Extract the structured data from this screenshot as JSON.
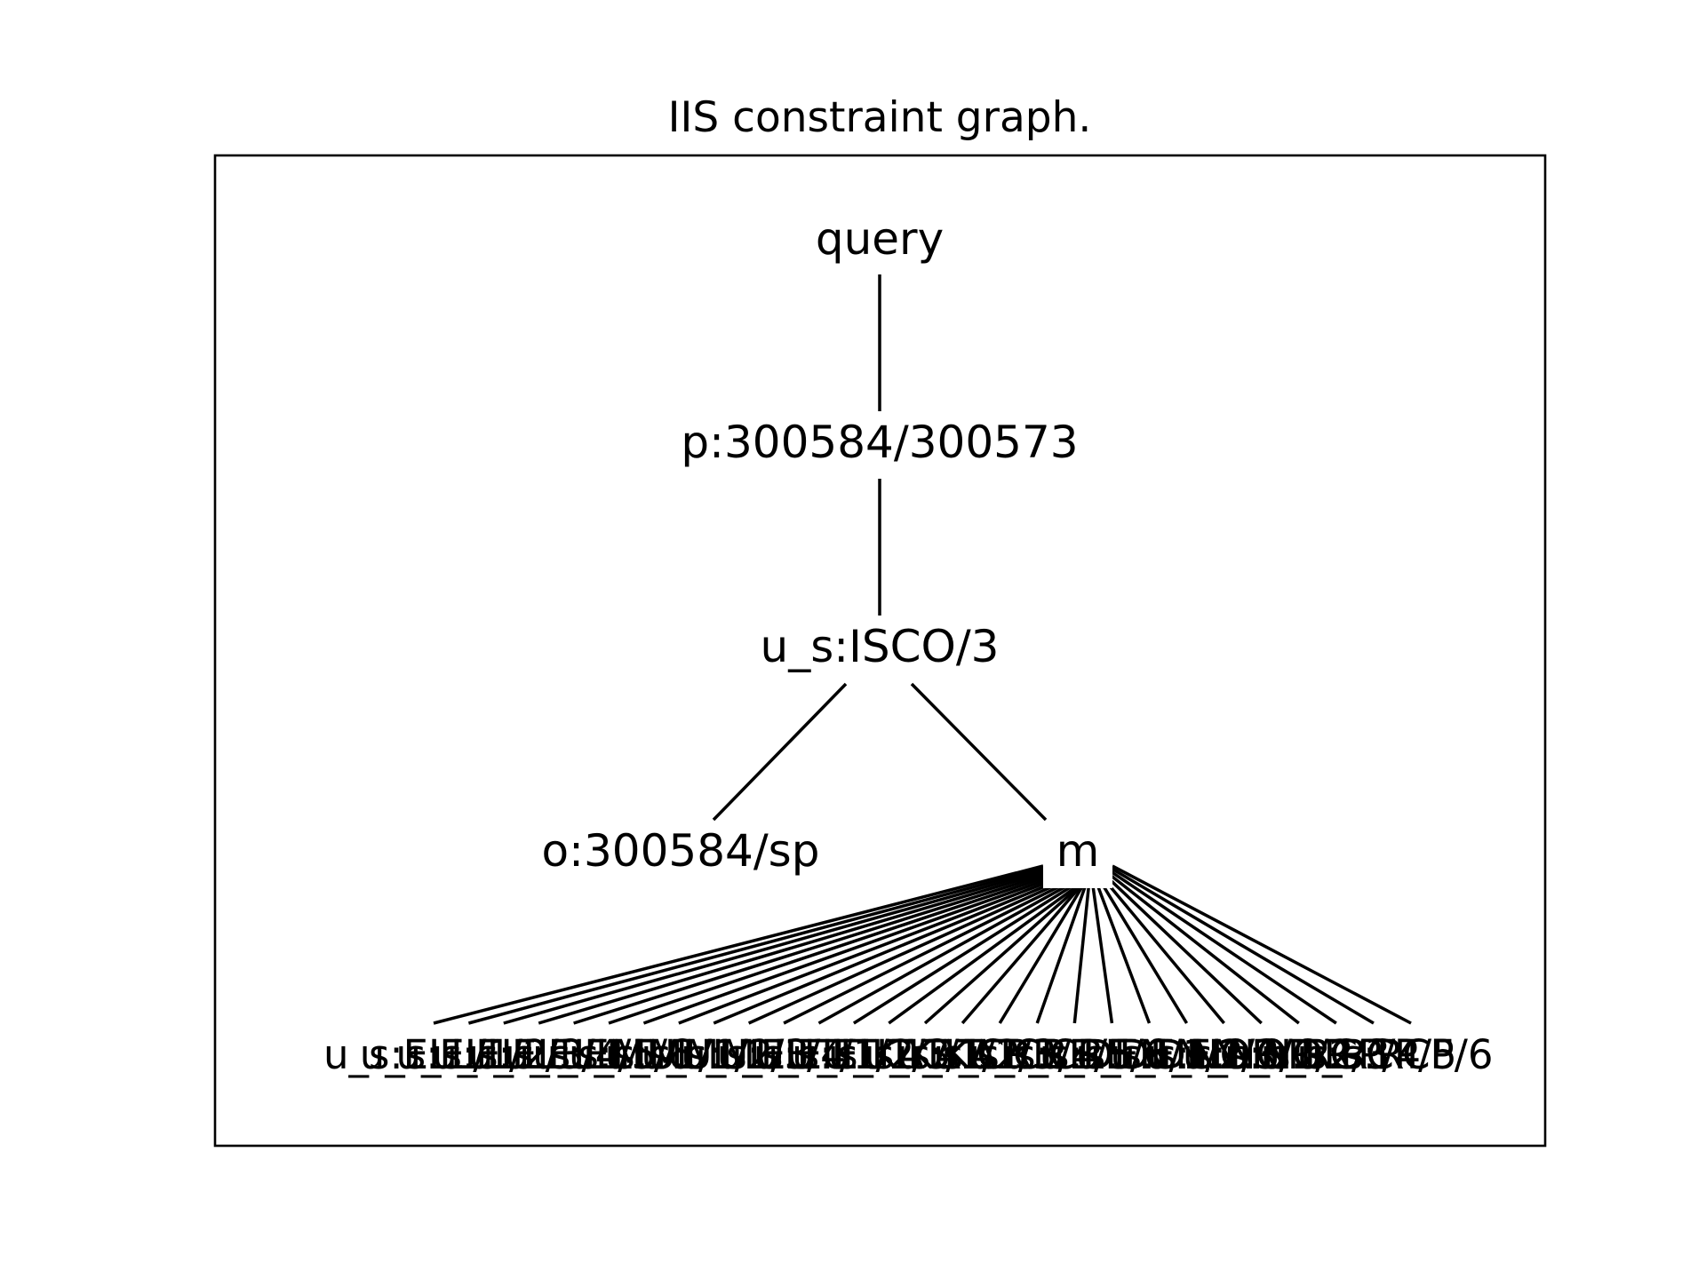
{
  "title": "IIS constraint graph.",
  "nodes": {
    "root": "query",
    "level1": "p:300584/300573",
    "level2": "u_s:ISCO/3",
    "left": "o:300584/sp",
    "mid": "m"
  },
  "leaf_labels": [
    "u_s:ELL/1",
    "u_s:ELL/2",
    "u_s:ELL/3",
    "u_s:ELL/4",
    "u_s:ELL/5",
    "u_s:ELL/6",
    "u_s:MUL/1",
    "u_s:MUL/2",
    "u_s:MUL/3",
    "u_s:MUL/4",
    "u_s:EUT/1",
    "u_s:EUT/2",
    "u_s:EUT/3",
    "u_s:KAT/1",
    "u_s:KAT/2",
    "u_s:KAT/3",
    "u_s:CRE/4",
    "u_s:CRE/5",
    "u_s:CRE/6",
    "u_s:DEN/1",
    "u_s:DEN/2",
    "u_s:DEN/3",
    "u_s:NOR/1",
    "u_s:NOR/2",
    "u_s:NOR/3",
    "u_s:RCP/4",
    "u_s:RCP/5",
    "u_s:RCP/6"
  ],
  "edges": [
    [
      "query",
      "p:300584/300573"
    ],
    [
      "p:300584/300573",
      "u_s:ISCO/3"
    ],
    [
      "u_s:ISCO/3",
      "o:300584/sp"
    ],
    [
      "u_s:ISCO/3",
      "m"
    ]
  ]
}
